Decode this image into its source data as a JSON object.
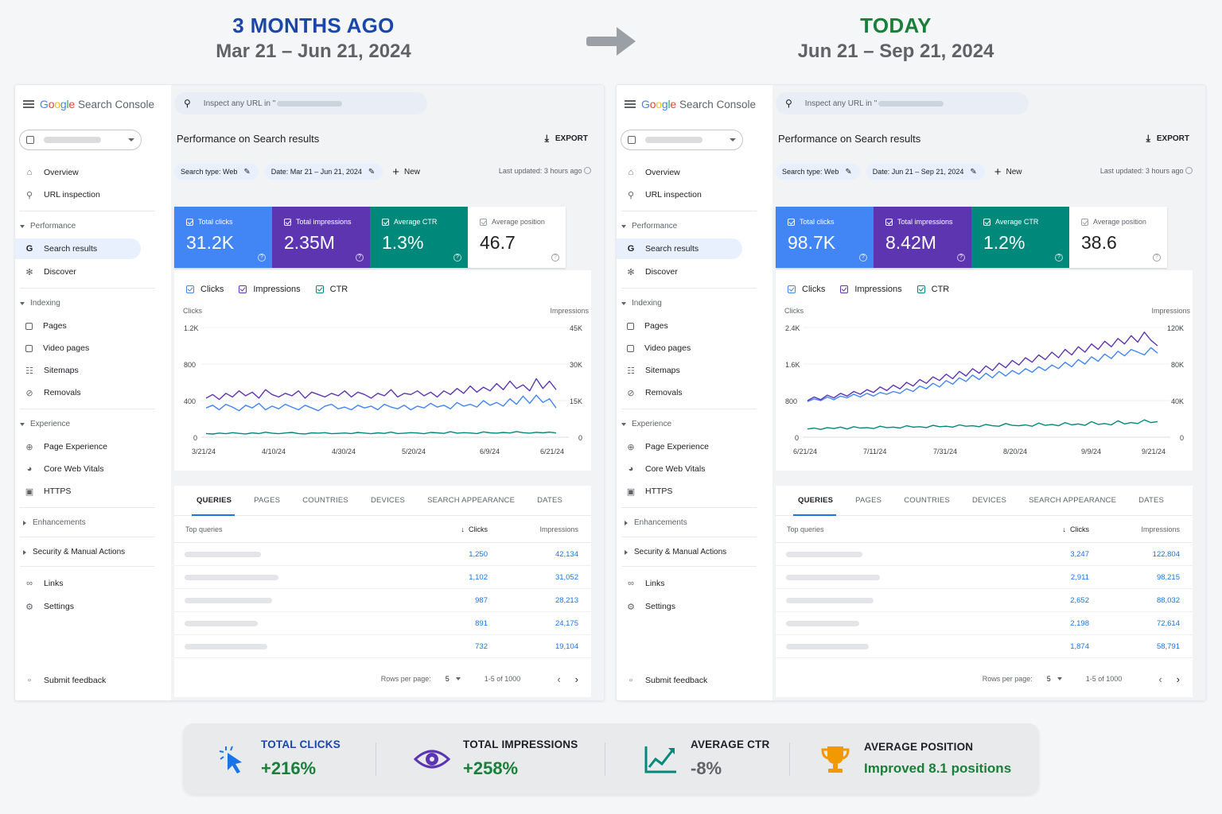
{
  "header": {
    "left_title": "3 MONTHS AGO",
    "left_dates": "Mar 21 – Jun 21, 2024",
    "right_title": "TODAY",
    "right_dates": "Jun 21 – Sep 21, 2024"
  },
  "app": {
    "google": "Google",
    "product": "Search Console",
    "search_placeholder": "Inspect any URL in \"",
    "page_title": "Performance on Search results",
    "export_label": "EXPORT",
    "search_type_chip": "Search type: Web",
    "new_label": "New",
    "last_updated": "Last updated: 3 hours ago"
  },
  "sidebar": {
    "overview": "Overview",
    "url_inspection": "URL inspection",
    "performance": "Performance",
    "search_results": "Search results",
    "discover": "Discover",
    "indexing": "Indexing",
    "pages": "Pages",
    "video_pages": "Video pages",
    "sitemaps": "Sitemaps",
    "removals": "Removals",
    "experience": "Experience",
    "page_experience": "Page Experience",
    "core_web_vitals": "Core Web Vitals",
    "https": "HTTPS",
    "enhancements": "Enhancements",
    "security": "Security & Manual Actions",
    "links": "Links",
    "settings": "Settings",
    "submit_feedback": "Submit feedback"
  },
  "legend": {
    "clicks": "Clicks",
    "impressions": "Impressions",
    "ctr": "CTR"
  },
  "cards_labels": {
    "clicks": "Total clicks",
    "impressions": "Total impressions",
    "ctr": "Average CTR",
    "position": "Average position"
  },
  "tabs": [
    "QUERIES",
    "PAGES",
    "COUNTRIES",
    "DEVICES",
    "SEARCH APPEARANCE",
    "DATES"
  ],
  "table_head": {
    "queries": "Top queries",
    "clicks": "Clicks",
    "impressions": "Impressions"
  },
  "table_foot": {
    "rows_per_page": "Rows per page:",
    "rows": "5",
    "range": "1-5 of 1000"
  },
  "left": {
    "date_chip": "Date: Mar 21 – Jun 21, 2024",
    "cards": {
      "clicks": "31.2K",
      "impressions": "2.35M",
      "ctr": "1.3%",
      "position": "46.7"
    },
    "rows": [
      {
        "clicks": "1,250",
        "impressions": "42,134"
      },
      {
        "clicks": "1,102",
        "impressions": "31,052"
      },
      {
        "clicks": "987",
        "impressions": "28,213"
      },
      {
        "clicks": "891",
        "impressions": "24,175"
      },
      {
        "clicks": "732",
        "impressions": "19,104"
      }
    ]
  },
  "right": {
    "date_chip": "Date: Jun 21 – Sep 21, 2024",
    "cards": {
      "clicks": "98.7K",
      "impressions": "8.42M",
      "ctr": "1.2%",
      "position": "38.6"
    },
    "rows": [
      {
        "clicks": "3,247",
        "impressions": "122,804"
      },
      {
        "clicks": "2,911",
        "impressions": "98,215"
      },
      {
        "clicks": "2,652",
        "impressions": "88,032"
      },
      {
        "clicks": "2,198",
        "impressions": "72,614"
      },
      {
        "clicks": "1,874",
        "impressions": "58,791"
      }
    ]
  },
  "chart_data": [
    {
      "type": "line",
      "ylabel": "Clicks",
      "y2label": "Impressions",
      "ylim": [
        0,
        1200
      ],
      "y2lim": [
        0,
        45000
      ],
      "y_ticks": [
        "1.2K",
        "800",
        "400",
        "0"
      ],
      "y2_ticks": [
        "45K",
        "30K",
        "15K",
        "0"
      ],
      "x_ticks": [
        "3/21/24",
        "4/10/24",
        "4/30/24",
        "5/20/24",
        "6/9/24",
        "6/21/24"
      ],
      "series": [
        {
          "name": "Clicks",
          "color": "#4285f4",
          "values": [
            320,
            350,
            300,
            360,
            330,
            290,
            350,
            320,
            370,
            300,
            340,
            310,
            360,
            330,
            300,
            350,
            320,
            290,
            340,
            360,
            310,
            330,
            300,
            350,
            320,
            340,
            300,
            360,
            330,
            310,
            350,
            300,
            340,
            320,
            370,
            330,
            350,
            310,
            380,
            340,
            360,
            330,
            400,
            350,
            380,
            340,
            420,
            360,
            450,
            370,
            460,
            380,
            420,
            320
          ]
        },
        {
          "name": "Impressions",
          "color": "#5e35b1",
          "values": [
            16000,
            17500,
            15500,
            18000,
            16500,
            19000,
            17000,
            18500,
            16000,
            19500,
            17500,
            16500,
            18000,
            17000,
            19000,
            16000,
            18500,
            17500,
            16500,
            18000,
            17000,
            19000,
            16500,
            18500,
            17500,
            16000,
            18000,
            17000,
            19500,
            16500,
            18000,
            17500,
            19000,
            17000,
            18500,
            16500,
            19000,
            17500,
            20000,
            18000,
            21000,
            18500,
            20500,
            19000,
            22000,
            19500,
            23000,
            20000,
            21500,
            19000,
            24000,
            20000,
            23000,
            19500
          ]
        },
        {
          "name": "CTR",
          "color": "#00897b",
          "values": [
            40,
            35,
            45,
            38,
            50,
            42,
            36,
            48,
            40,
            55,
            44,
            38,
            46,
            52,
            40,
            36,
            48,
            44,
            50,
            38,
            42,
            46,
            40,
            52,
            45,
            38,
            48,
            42,
            56,
            40,
            44,
            50,
            46,
            38,
            52,
            48,
            42,
            60,
            44,
            50,
            46,
            40,
            58,
            48,
            44,
            52,
            46,
            62,
            50,
            44,
            54,
            48,
            56,
            46
          ]
        }
      ]
    },
    {
      "type": "line",
      "ylabel": "Clicks",
      "y2label": "Impressions",
      "ylim": [
        0,
        2400
      ],
      "y2lim": [
        0,
        120000
      ],
      "y_ticks": [
        "2.4K",
        "1.6K",
        "800",
        "0"
      ],
      "y2_ticks": [
        "120K",
        "80K",
        "40K",
        "0"
      ],
      "x_ticks": [
        "6/21/24",
        "7/11/24",
        "7/31/24",
        "8/20/24",
        "9/9/24",
        "9/21/24"
      ],
      "series": [
        {
          "name": "Clicks",
          "color": "#4285f4",
          "values": [
            780,
            840,
            800,
            880,
            820,
            900,
            860,
            940,
            880,
            960,
            900,
            980,
            940,
            1000,
            960,
            1060,
            1000,
            1120,
            1060,
            1180,
            1100,
            1240,
            1160,
            1300,
            1220,
            1360,
            1260,
            1400,
            1300,
            1440,
            1340,
            1460,
            1380,
            1500,
            1420,
            1540,
            1460,
            1580,
            1500,
            1640,
            1540,
            1700,
            1600,
            1760,
            1660,
            1820,
            1720,
            1880,
            1780,
            1920,
            1860,
            1800,
            1960,
            1840
          ]
        },
        {
          "name": "Impressions",
          "color": "#5e35b1",
          "values": [
            40000,
            44000,
            41000,
            46000,
            43000,
            48000,
            45000,
            50000,
            47000,
            52000,
            49000,
            55000,
            51000,
            57000,
            53000,
            60000,
            56000,
            63000,
            59000,
            66000,
            62000,
            69000,
            64000,
            72000,
            67000,
            75000,
            70000,
            78000,
            73000,
            81000,
            76000,
            84000,
            79000,
            87000,
            82000,
            90000,
            85000,
            93000,
            87000,
            96000,
            90000,
            99000,
            93000,
            102000,
            96000,
            105000,
            99000,
            108000,
            102000,
            111000,
            104000,
            115000,
            106000,
            100000
          ]
        },
        {
          "name": "CTR",
          "color": "#00897b",
          "values": [
            180,
            200,
            170,
            210,
            190,
            220,
            180,
            230,
            200,
            210,
            190,
            240,
            210,
            220,
            200,
            250,
            220,
            230,
            210,
            260,
            230,
            240,
            220,
            270,
            240,
            250,
            230,
            280,
            250,
            240,
            300,
            260,
            250,
            270,
            240,
            310,
            260,
            280,
            250,
            320,
            270,
            290,
            260,
            340,
            280,
            300,
            270,
            360,
            290,
            320,
            300,
            380,
            320,
            340
          ]
        }
      ]
    }
  ],
  "summary": {
    "clicks_label": "TOTAL CLICKS",
    "clicks_value": "+216%",
    "impr_label": "TOTAL IMPRESSIONS",
    "impr_value": "+258%",
    "ctr_label": "AVERAGE CTR",
    "ctr_value": "-8%",
    "pos_label": "AVERAGE POSITION",
    "pos_value": "Improved 8.1 positions"
  }
}
